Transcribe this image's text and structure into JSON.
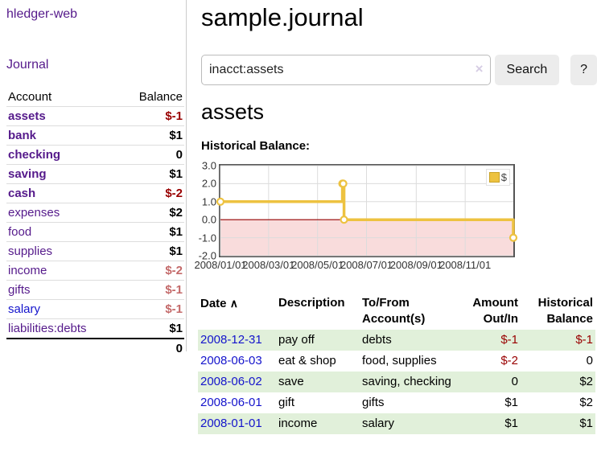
{
  "palette": {
    "link_purple": "#551a8b",
    "link_blue": "#1414cc",
    "negative_dark": "#990000",
    "negative_light": "#c46a6a",
    "row_green": "#e1f0da",
    "chart_gold": "#edc240",
    "chart_negative_fill": "#f9dcdc",
    "chart_zero_line": "#990000",
    "grid_line": "#dcdcdc"
  },
  "icons": {
    "clear": "×",
    "sort_ascending": "∧",
    "legend_swatch": "legend-swatch-square"
  },
  "sidebar": {
    "app_title": "hledger-web",
    "nav": {
      "journal_label": "Journal"
    },
    "table": {
      "headers": {
        "account": "Account",
        "balance": "Balance"
      },
      "accounts": [
        {
          "name": "assets",
          "balance": "$-1"
        },
        {
          "name": "bank",
          "balance": "$1"
        },
        {
          "name": "checking",
          "balance": "0"
        },
        {
          "name": "saving",
          "balance": "$1"
        },
        {
          "name": "cash",
          "balance": "$-2"
        },
        {
          "name": "expenses",
          "balance": "$2"
        },
        {
          "name": "food",
          "balance": "$1"
        },
        {
          "name": "supplies",
          "balance": "$1"
        },
        {
          "name": "income",
          "balance": "$-2"
        },
        {
          "name": "gifts",
          "balance": "$-1"
        },
        {
          "name": "salary",
          "balance": "$-1"
        },
        {
          "name": "liabilities:debts",
          "balance": "$1"
        }
      ],
      "total": "0"
    }
  },
  "main": {
    "title": "sample.journal",
    "search": {
      "value": "inacct:assets",
      "button_label": "Search",
      "help_label": "?"
    },
    "account_title": "assets",
    "chart_label": "Historical Balance:"
  },
  "chart_data": {
    "type": "line",
    "step": true,
    "title": "Historical Balance:",
    "legend": {
      "position": "top-right",
      "label": "$"
    },
    "xlim": [
      "2008-01-01",
      "2008-12-31"
    ],
    "ylim": [
      -2,
      3
    ],
    "x_ticks": [
      "2008/01/01",
      "2008/03/01",
      "2008/05/01",
      "2008/07/01",
      "2008/09/01",
      "2008/11/01"
    ],
    "y_ticks": [
      3.0,
      2.0,
      1.0,
      0.0,
      -1.0,
      -2.0
    ],
    "grid": true,
    "negative_region_shaded": true,
    "series": [
      {
        "name": "$",
        "points": [
          {
            "date": "2008-01-01",
            "value": 1
          },
          {
            "date": "2008-06-01",
            "value": 2
          },
          {
            "date": "2008-06-02",
            "value": 2
          },
          {
            "date": "2008-06-03",
            "value": 0
          },
          {
            "date": "2008-12-31",
            "value": -1
          }
        ]
      }
    ]
  },
  "register": {
    "headers": {
      "date": "Date",
      "description": "Description",
      "accounts": "To/From Account(s)",
      "amount": "Amount Out/In",
      "balance": "Historical Balance"
    },
    "rows": [
      {
        "date": "2008-12-31",
        "description": "pay off",
        "accounts": "debts",
        "amount": "$-1",
        "balance": "$-1"
      },
      {
        "date": "2008-06-03",
        "description": "eat & shop",
        "accounts": "food, supplies",
        "amount": "$-2",
        "balance": "0"
      },
      {
        "date": "2008-06-02",
        "description": "save",
        "accounts": "saving, checking",
        "amount": "0",
        "balance": "$2"
      },
      {
        "date": "2008-06-01",
        "description": "gift",
        "accounts": "gifts",
        "amount": "$1",
        "balance": "$2"
      },
      {
        "date": "2008-01-01",
        "description": "income",
        "accounts": "salary",
        "amount": "$1",
        "balance": "$1"
      }
    ]
  }
}
